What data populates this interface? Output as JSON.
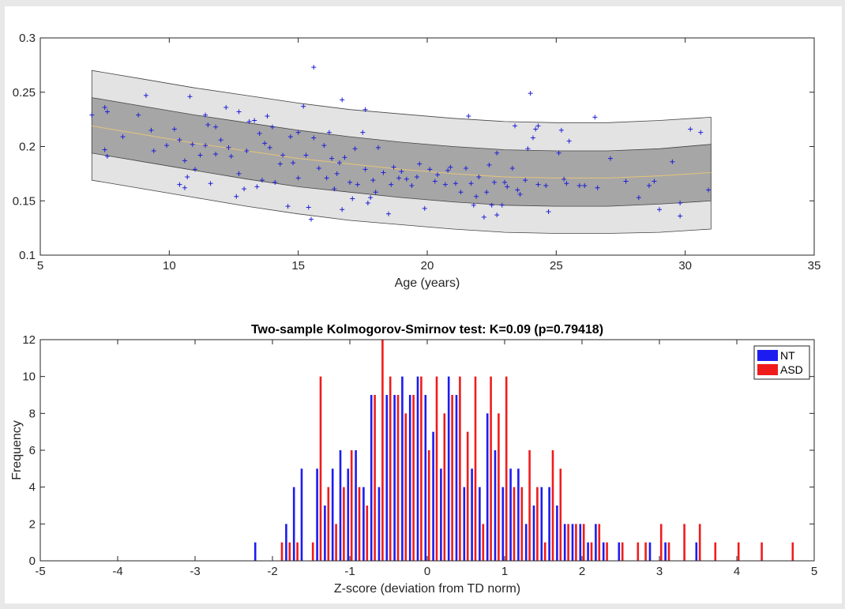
{
  "chart_data": [
    {
      "type": "scatter",
      "title": "",
      "xlabel": "Age (years)",
      "ylabel": "",
      "xlim": [
        5,
        35
      ],
      "ylim": [
        0.1,
        0.3
      ],
      "xticks": [
        5,
        10,
        15,
        20,
        25,
        30,
        35
      ],
      "yticks": [
        0.1,
        0.15,
        0.2,
        0.25,
        0.3
      ],
      "grid": false,
      "colors": {
        "points": "#1f1fd6",
        "outer_band": "#e3e3e3",
        "inner_band": "#a6a6a6",
        "mean_line": "#e6c47a"
      },
      "bands": {
        "x": [
          7,
          9,
          11,
          13,
          15,
          17,
          19,
          21,
          23,
          25,
          27,
          29,
          31
        ],
        "mean": [
          0.219,
          0.211,
          0.203,
          0.196,
          0.189,
          0.184,
          0.179,
          0.175,
          0.172,
          0.171,
          0.171,
          0.173,
          0.176
        ],
        "inner_lower": [
          0.194,
          0.186,
          0.178,
          0.17,
          0.163,
          0.158,
          0.153,
          0.149,
          0.146,
          0.145,
          0.145,
          0.147,
          0.15
        ],
        "inner_upper": [
          0.245,
          0.237,
          0.229,
          0.222,
          0.215,
          0.209,
          0.204,
          0.2,
          0.197,
          0.196,
          0.196,
          0.198,
          0.202
        ],
        "outer_lower": [
          0.169,
          0.161,
          0.153,
          0.145,
          0.138,
          0.132,
          0.128,
          0.124,
          0.121,
          0.12,
          0.12,
          0.121,
          0.124
        ],
        "outer_upper": [
          0.27,
          0.262,
          0.254,
          0.247,
          0.24,
          0.234,
          0.23,
          0.226,
          0.223,
          0.222,
          0.222,
          0.224,
          0.227
        ]
      },
      "points": [
        [
          7.0,
          0.229
        ],
        [
          7.5,
          0.236
        ],
        [
          7.6,
          0.232
        ],
        [
          7.5,
          0.197
        ],
        [
          7.6,
          0.191
        ],
        [
          8.2,
          0.209
        ],
        [
          8.8,
          0.229
        ],
        [
          9.1,
          0.247
        ],
        [
          9.3,
          0.215
        ],
        [
          9.4,
          0.196
        ],
        [
          9.9,
          0.201
        ],
        [
          10.2,
          0.216
        ],
        [
          10.4,
          0.206
        ],
        [
          10.4,
          0.165
        ],
        [
          10.6,
          0.162
        ],
        [
          10.6,
          0.187
        ],
        [
          10.7,
          0.172
        ],
        [
          10.8,
          0.246
        ],
        [
          10.9,
          0.202
        ],
        [
          11.0,
          0.179
        ],
        [
          11.2,
          0.192
        ],
        [
          11.4,
          0.229
        ],
        [
          11.4,
          0.201
        ],
        [
          11.5,
          0.22
        ],
        [
          11.6,
          0.166
        ],
        [
          11.8,
          0.218
        ],
        [
          11.8,
          0.193
        ],
        [
          12.0,
          0.206
        ],
        [
          12.2,
          0.236
        ],
        [
          12.3,
          0.199
        ],
        [
          12.4,
          0.191
        ],
        [
          12.6,
          0.154
        ],
        [
          12.7,
          0.232
        ],
        [
          12.7,
          0.175
        ],
        [
          12.9,
          0.161
        ],
        [
          13.0,
          0.196
        ],
        [
          13.1,
          0.223
        ],
        [
          13.3,
          0.224
        ],
        [
          13.4,
          0.163
        ],
        [
          13.5,
          0.212
        ],
        [
          13.6,
          0.169
        ],
        [
          13.7,
          0.203
        ],
        [
          13.8,
          0.228
        ],
        [
          13.9,
          0.199
        ],
        [
          14.0,
          0.218
        ],
        [
          14.1,
          0.167
        ],
        [
          14.3,
          0.184
        ],
        [
          14.4,
          0.192
        ],
        [
          14.6,
          0.145
        ],
        [
          14.7,
          0.209
        ],
        [
          14.8,
          0.185
        ],
        [
          15.0,
          0.213
        ],
        [
          15.0,
          0.171
        ],
        [
          15.2,
          0.237
        ],
        [
          15.3,
          0.192
        ],
        [
          15.4,
          0.144
        ],
        [
          15.5,
          0.133
        ],
        [
          15.6,
          0.208
        ],
        [
          15.6,
          0.273
        ],
        [
          15.8,
          0.18
        ],
        [
          16.0,
          0.201
        ],
        [
          16.1,
          0.171
        ],
        [
          16.2,
          0.213
        ],
        [
          16.3,
          0.189
        ],
        [
          16.4,
          0.161
        ],
        [
          16.5,
          0.175
        ],
        [
          16.6,
          0.185
        ],
        [
          16.7,
          0.243
        ],
        [
          16.7,
          0.142
        ],
        [
          16.8,
          0.19
        ],
        [
          17.0,
          0.167
        ],
        [
          17.1,
          0.152
        ],
        [
          17.2,
          0.198
        ],
        [
          17.3,
          0.165
        ],
        [
          17.5,
          0.213
        ],
        [
          17.6,
          0.234
        ],
        [
          17.6,
          0.179
        ],
        [
          17.7,
          0.148
        ],
        [
          17.8,
          0.153
        ],
        [
          17.9,
          0.169
        ],
        [
          18.0,
          0.158
        ],
        [
          18.1,
          0.199
        ],
        [
          18.3,
          0.176
        ],
        [
          18.5,
          0.138
        ],
        [
          18.6,
          0.165
        ],
        [
          18.7,
          0.181
        ],
        [
          18.9,
          0.171
        ],
        [
          19.0,
          0.177
        ],
        [
          19.2,
          0.17
        ],
        [
          19.4,
          0.164
        ],
        [
          19.6,
          0.172
        ],
        [
          19.7,
          0.184
        ],
        [
          19.9,
          0.143
        ],
        [
          20.1,
          0.179
        ],
        [
          20.3,
          0.168
        ],
        [
          20.4,
          0.174
        ],
        [
          20.7,
          0.165
        ],
        [
          20.8,
          0.178
        ],
        [
          20.9,
          0.181
        ],
        [
          21.1,
          0.166
        ],
        [
          21.3,
          0.158
        ],
        [
          21.5,
          0.18
        ],
        [
          21.6,
          0.228
        ],
        [
          21.7,
          0.166
        ],
        [
          21.8,
          0.146
        ],
        [
          21.9,
          0.154
        ],
        [
          22.0,
          0.172
        ],
        [
          22.2,
          0.135
        ],
        [
          22.3,
          0.158
        ],
        [
          22.4,
          0.183
        ],
        [
          22.5,
          0.146
        ],
        [
          22.6,
          0.167
        ],
        [
          22.7,
          0.194
        ],
        [
          22.7,
          0.137
        ],
        [
          22.9,
          0.146
        ],
        [
          23.0,
          0.167
        ],
        [
          23.1,
          0.163
        ],
        [
          23.3,
          0.18
        ],
        [
          23.4,
          0.219
        ],
        [
          23.5,
          0.16
        ],
        [
          23.6,
          0.156
        ],
        [
          23.8,
          0.169
        ],
        [
          23.9,
          0.198
        ],
        [
          24.0,
          0.249
        ],
        [
          24.1,
          0.208
        ],
        [
          24.2,
          0.216
        ],
        [
          24.3,
          0.219
        ],
        [
          24.3,
          0.165
        ],
        [
          24.6,
          0.164
        ],
        [
          24.7,
          0.14
        ],
        [
          25.1,
          0.194
        ],
        [
          25.2,
          0.215
        ],
        [
          25.3,
          0.17
        ],
        [
          25.4,
          0.166
        ],
        [
          25.5,
          0.205
        ],
        [
          25.9,
          0.164
        ],
        [
          26.1,
          0.164
        ],
        [
          26.5,
          0.227
        ],
        [
          26.6,
          0.162
        ],
        [
          27.1,
          0.189
        ],
        [
          27.7,
          0.168
        ],
        [
          28.2,
          0.153
        ],
        [
          28.6,
          0.164
        ],
        [
          28.8,
          0.168
        ],
        [
          29.0,
          0.142
        ],
        [
          29.5,
          0.186
        ],
        [
          29.8,
          0.148
        ],
        [
          29.8,
          0.136
        ],
        [
          30.2,
          0.216
        ],
        [
          30.6,
          0.213
        ],
        [
          30.9,
          0.16
        ]
      ]
    },
    {
      "type": "bar",
      "title": "Two-sample Kolmogorov-Smirnov test: K=0.09 (p=0.79418)",
      "xlabel": "Z-score (deviation from TD norm)",
      "ylabel": "Frequency",
      "xlim": [
        -5,
        5
      ],
      "ylim": [
        0,
        12
      ],
      "xticks": [
        -5,
        -4,
        -3,
        -2,
        -1,
        0,
        1,
        2,
        3,
        4,
        5
      ],
      "yticks": [
        0,
        2,
        4,
        6,
        8,
        10,
        12
      ],
      "grid": false,
      "legend_position": "top-right",
      "series": [
        {
          "name": "NT",
          "color": "#1c1cf0",
          "points": [
            [
              -2.2,
              1
            ],
            [
              -1.8,
              2
            ],
            [
              -1.7,
              4
            ],
            [
              -1.6,
              5
            ],
            [
              -1.4,
              5
            ],
            [
              -1.3,
              3
            ],
            [
              -1.2,
              5
            ],
            [
              -1.1,
              6
            ],
            [
              -1.0,
              5
            ],
            [
              -0.9,
              6
            ],
            [
              -0.8,
              4
            ],
            [
              -0.7,
              9
            ],
            [
              -0.6,
              4
            ],
            [
              -0.5,
              9
            ],
            [
              -0.4,
              9
            ],
            [
              -0.3,
              10
            ],
            [
              -0.2,
              9
            ],
            [
              -0.1,
              10
            ],
            [
              0.0,
              9
            ],
            [
              0.1,
              7
            ],
            [
              0.2,
              5
            ],
            [
              0.3,
              10
            ],
            [
              0.4,
              9
            ],
            [
              0.5,
              4
            ],
            [
              0.6,
              5
            ],
            [
              0.7,
              4
            ],
            [
              0.8,
              8
            ],
            [
              0.9,
              6
            ],
            [
              1.0,
              4
            ],
            [
              1.1,
              5
            ],
            [
              1.2,
              5
            ],
            [
              1.3,
              2
            ],
            [
              1.4,
              3
            ],
            [
              1.5,
              4
            ],
            [
              1.6,
              4
            ],
            [
              1.7,
              3
            ],
            [
              1.8,
              2
            ],
            [
              1.9,
              2
            ],
            [
              2.0,
              2
            ],
            [
              2.1,
              1
            ],
            [
              2.2,
              2
            ],
            [
              2.3,
              1
            ],
            [
              2.5,
              1
            ],
            [
              2.9,
              1
            ],
            [
              3.1,
              1
            ],
            [
              3.5,
              1
            ]
          ]
        },
        {
          "name": "ASD",
          "color": "#f01c1c",
          "points": [
            [
              -1.9,
              1
            ],
            [
              -1.8,
              1
            ],
            [
              -1.7,
              1
            ],
            [
              -1.5,
              1
            ],
            [
              -1.4,
              10
            ],
            [
              -1.3,
              4
            ],
            [
              -1.2,
              2
            ],
            [
              -1.1,
              4
            ],
            [
              -1.0,
              6
            ],
            [
              -0.9,
              4
            ],
            [
              -0.8,
              3
            ],
            [
              -0.7,
              9
            ],
            [
              -0.6,
              12
            ],
            [
              -0.5,
              10
            ],
            [
              -0.4,
              9
            ],
            [
              -0.3,
              8
            ],
            [
              -0.2,
              9
            ],
            [
              -0.1,
              10
            ],
            [
              0.0,
              6
            ],
            [
              0.1,
              10
            ],
            [
              0.2,
              8
            ],
            [
              0.3,
              9
            ],
            [
              0.4,
              10
            ],
            [
              0.5,
              7
            ],
            [
              0.6,
              10
            ],
            [
              0.7,
              2
            ],
            [
              0.8,
              10
            ],
            [
              0.9,
              8
            ],
            [
              1.0,
              10
            ],
            [
              1.1,
              4
            ],
            [
              1.2,
              4
            ],
            [
              1.3,
              6
            ],
            [
              1.4,
              4
            ],
            [
              1.5,
              1
            ],
            [
              1.6,
              6
            ],
            [
              1.7,
              5
            ],
            [
              1.8,
              2
            ],
            [
              1.9,
              2
            ],
            [
              2.0,
              2
            ],
            [
              2.1,
              1
            ],
            [
              2.2,
              2
            ],
            [
              2.3,
              1
            ],
            [
              2.5,
              1
            ],
            [
              2.7,
              1
            ],
            [
              2.8,
              1
            ],
            [
              3.0,
              2
            ],
            [
              3.1,
              1
            ],
            [
              3.3,
              2
            ],
            [
              3.5,
              2
            ],
            [
              3.7,
              1
            ],
            [
              4.0,
              1
            ],
            [
              4.3,
              1
            ],
            [
              4.7,
              1
            ]
          ]
        }
      ]
    }
  ]
}
